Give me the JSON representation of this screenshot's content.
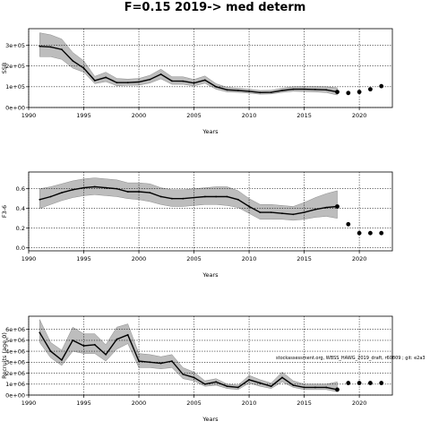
{
  "figure_title": "F=0.15 2019-> med determ",
  "footnote": "stockassessment.org, WBSS_HAWG_2019_draft, r60809 ; git: e2a3",
  "colors": {
    "band": "#bdbdbd",
    "band_edge": "#8c8c8c",
    "line": "#000000",
    "grid": "#000000"
  },
  "chart_data": [
    {
      "type": "line",
      "xlabel": "Years",
      "ylabel": "SSB",
      "xlim": [
        1990,
        2023
      ],
      "ylim": [
        0,
        380000
      ],
      "xticks": [
        1990,
        1995,
        2000,
        2005,
        2010,
        2015,
        2020
      ],
      "yticks": [
        0,
        100000,
        200000,
        300000
      ],
      "ytick_labels": [
        "0e+00",
        "1e+05",
        "2e+05",
        "3e+05"
      ],
      "grid": true,
      "x": [
        1991,
        1992,
        1993,
        1994,
        1995,
        1996,
        1997,
        1998,
        1999,
        2000,
        2001,
        2002,
        2003,
        2004,
        2005,
        2006,
        2007,
        2008,
        2009,
        2010,
        2011,
        2012,
        2013,
        2014,
        2015,
        2016,
        2017,
        2018
      ],
      "estimate": [
        295000,
        292000,
        280000,
        225000,
        190000,
        130000,
        145000,
        120000,
        120000,
        123000,
        135000,
        160000,
        128000,
        127000,
        118000,
        132000,
        100000,
        85000,
        82000,
        78000,
        72000,
        73000,
        82000,
        88000,
        88000,
        87000,
        85000,
        75000
      ],
      "lower": [
        245000,
        245000,
        232000,
        190000,
        170000,
        115000,
        125000,
        105000,
        107000,
        108000,
        118000,
        138000,
        112000,
        112000,
        104000,
        117000,
        88000,
        75000,
        73000,
        69000,
        64000,
        65000,
        73000,
        78000,
        77000,
        75000,
        72000,
        60000
      ],
      "upper": [
        360000,
        350000,
        330000,
        265000,
        225000,
        150000,
        170000,
        140000,
        137000,
        140000,
        155000,
        185000,
        148000,
        148000,
        135000,
        152000,
        115000,
        97000,
        93000,
        88000,
        82000,
        83000,
        93000,
        100000,
        101000,
        101000,
        100000,
        95000
      ],
      "forecast_x": [
        2019,
        2020,
        2021,
        2022
      ],
      "forecast": [
        70000,
        75000,
        88000,
        103000
      ]
    },
    {
      "type": "line",
      "xlabel": "Years",
      "ylabel": "F3-6",
      "xlim": [
        1990,
        2023
      ],
      "ylim": [
        -0.03,
        0.77
      ],
      "xticks": [
        1990,
        1995,
        2000,
        2005,
        2010,
        2015,
        2020
      ],
      "yticks": [
        0.0,
        0.2,
        0.4,
        0.6
      ],
      "ytick_labels": [
        "0.0",
        "0.2",
        "0.4",
        "0.6"
      ],
      "grid": true,
      "x": [
        1991,
        1992,
        1993,
        1994,
        1995,
        1996,
        1997,
        1998,
        1999,
        2000,
        2001,
        2002,
        2003,
        2004,
        2005,
        2006,
        2007,
        2008,
        2009,
        2010,
        2011,
        2012,
        2013,
        2014,
        2015,
        2016,
        2017,
        2018
      ],
      "estimate": [
        0.49,
        0.52,
        0.56,
        0.59,
        0.61,
        0.62,
        0.61,
        0.6,
        0.57,
        0.57,
        0.56,
        0.52,
        0.5,
        0.5,
        0.51,
        0.52,
        0.52,
        0.52,
        0.49,
        0.42,
        0.36,
        0.36,
        0.35,
        0.34,
        0.36,
        0.39,
        0.41,
        0.42
      ],
      "lower": [
        0.4,
        0.44,
        0.48,
        0.51,
        0.53,
        0.54,
        0.53,
        0.52,
        0.5,
        0.49,
        0.47,
        0.44,
        0.42,
        0.42,
        0.43,
        0.44,
        0.44,
        0.43,
        0.41,
        0.35,
        0.29,
        0.29,
        0.29,
        0.28,
        0.29,
        0.31,
        0.32,
        0.3
      ],
      "upper": [
        0.6,
        0.62,
        0.65,
        0.68,
        0.7,
        0.71,
        0.7,
        0.69,
        0.66,
        0.66,
        0.65,
        0.61,
        0.59,
        0.59,
        0.6,
        0.61,
        0.62,
        0.62,
        0.58,
        0.5,
        0.44,
        0.44,
        0.43,
        0.42,
        0.46,
        0.51,
        0.55,
        0.58
      ],
      "forecast_x": [
        2019,
        2020,
        2021,
        2022
      ],
      "forecast": [
        0.24,
        0.15,
        0.15,
        0.15
      ]
    },
    {
      "type": "line",
      "xlabel": "Years",
      "ylabel": "Recruits (age 0)",
      "xlim": [
        1990,
        2023
      ],
      "ylim": [
        0,
        7200000
      ],
      "xticks": [
        1990,
        1995,
        2000,
        2005,
        2010,
        2015,
        2020
      ],
      "yticks": [
        0,
        1000000,
        2000000,
        3000000,
        4000000,
        5000000,
        6000000
      ],
      "ytick_labels": [
        "0e+00",
        "1e+06",
        "2e+06",
        "3e+06",
        "4e+06",
        "5e+06",
        "6e+06"
      ],
      "grid": true,
      "x": [
        1991,
        1992,
        1993,
        1994,
        1995,
        1996,
        1997,
        1998,
        1999,
        2000,
        2001,
        2002,
        2003,
        2004,
        2005,
        2006,
        2007,
        2008,
        2009,
        2010,
        2011,
        2012,
        2013,
        2014,
        2015,
        2016,
        2017,
        2018
      ],
      "estimate": [
        5700000,
        4000000,
        3200000,
        5000000,
        4500000,
        4600000,
        3700000,
        5100000,
        5500000,
        3100000,
        3000000,
        2900000,
        3100000,
        1900000,
        1600000,
        1000000,
        1200000,
        800000,
        700000,
        1400000,
        1100000,
        800000,
        1600000,
        900000,
        700000,
        700000,
        700000,
        500000
      ],
      "lower": [
        4800000,
        3400000,
        2700000,
        4000000,
        3800000,
        3800000,
        3100000,
        4200000,
        4700000,
        2500000,
        2500000,
        2400000,
        2500000,
        1500000,
        1300000,
        800000,
        900000,
        600000,
        500000,
        1100000,
        800000,
        600000,
        1200000,
        700000,
        500000,
        500000,
        500000,
        300000
      ],
      "upper": [
        6900000,
        4800000,
        4100000,
        6200000,
        5600000,
        5600000,
        4600000,
        6200000,
        6500000,
        3800000,
        3700000,
        3500000,
        3700000,
        2500000,
        2100000,
        1300000,
        1500000,
        1000000,
        900000,
        1800000,
        1400000,
        1100000,
        2100000,
        1300000,
        1000000,
        1000000,
        1000000,
        1200000
      ],
      "forecast_x": [
        2019,
        2020,
        2021,
        2022
      ],
      "forecast": [
        1100000,
        1100000,
        1100000,
        1100000
      ]
    }
  ]
}
